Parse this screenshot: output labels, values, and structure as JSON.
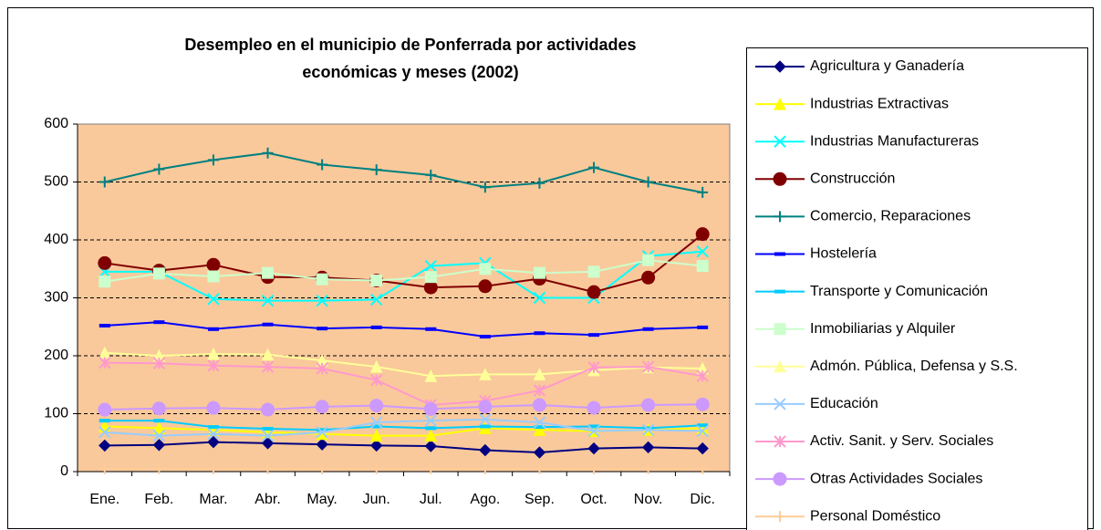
{
  "chart_data": {
    "type": "line",
    "title": [
      "Desempleo en el municipio de Ponferrada por actividades",
      "económicas y meses (2002)"
    ],
    "categories": [
      "Ene.",
      "Feb.",
      "Mar.",
      "Abr.",
      "May.",
      "Jun.",
      "Jul.",
      "Ago.",
      "Sep.",
      "Oct.",
      "Nov.",
      "Dic."
    ],
    "ylim": [
      0,
      600
    ],
    "yticks": [
      0,
      100,
      200,
      300,
      400,
      500,
      600
    ],
    "grid": true,
    "legend": "right",
    "plot_background": "#F9C99B",
    "series": [
      {
        "name": "Agricultura y Ganadería",
        "color": "#000080",
        "marker": "diamond",
        "values": [
          45,
          46,
          51,
          49,
          47,
          45,
          44,
          37,
          33,
          40,
          42,
          40
        ]
      },
      {
        "name": "Industrias Extractivas",
        "color": "#FFFF00",
        "marker": "triangle",
        "values": [
          78,
          75,
          72,
          68,
          65,
          62,
          62,
          75,
          72,
          70,
          72,
          75
        ]
      },
      {
        "name": "Industrias Manufactureras",
        "color": "#00FFFF",
        "marker": "x",
        "values": [
          345,
          345,
          298,
          295,
          295,
          297,
          355,
          360,
          300,
          300,
          372,
          380
        ]
      },
      {
        "name": "Construcción",
        "color": "#800000",
        "marker": "circle",
        "values": [
          360,
          347,
          357,
          336,
          335,
          330,
          318,
          320,
          333,
          310,
          335,
          410
        ]
      },
      {
        "name": "Comercio, Reparaciones",
        "color": "#008080",
        "marker": "plus",
        "values": [
          500,
          522,
          538,
          550,
          530,
          521,
          512,
          491,
          498,
          525,
          500,
          482
        ]
      },
      {
        "name": "Hostelería",
        "color": "#0000FF",
        "marker": "dash",
        "values": [
          252,
          258,
          246,
          254,
          247,
          249,
          246,
          233,
          239,
          236,
          246,
          249
        ]
      },
      {
        "name": "Transporte y Comunicación",
        "color": "#00CCFF",
        "marker": "dash",
        "values": [
          88,
          88,
          77,
          74,
          72,
          78,
          75,
          78,
          77,
          78,
          75,
          80
        ]
      },
      {
        "name": "Inmobiliarias y Alquiler",
        "color": "#CCFFCC",
        "marker": "square",
        "values": [
          328,
          342,
          337,
          343,
          332,
          330,
          336,
          350,
          343,
          345,
          365,
          355
        ]
      },
      {
        "name": "Admón. Pública, Defensa y S.S.",
        "color": "#FFFF99",
        "marker": "triangle",
        "values": [
          205,
          200,
          203,
          202,
          192,
          181,
          165,
          168,
          168,
          175,
          180,
          178
        ]
      },
      {
        "name": "Educación",
        "color": "#99CCFF",
        "marker": "x",
        "values": [
          68,
          62,
          65,
          62,
          68,
          85,
          88,
          90,
          85,
          70,
          72,
          70
        ]
      },
      {
        "name": "Activ. Sanit. y Serv. Sociales",
        "color": "#FF99CC",
        "marker": "star",
        "values": [
          188,
          187,
          183,
          181,
          178,
          158,
          115,
          122,
          140,
          180,
          181,
          165
        ]
      },
      {
        "name": "Otras Actividades Sociales",
        "color": "#CC99FF",
        "marker": "circle",
        "values": [
          107,
          109,
          110,
          107,
          112,
          114,
          108,
          112,
          115,
          110,
          115,
          116
        ]
      },
      {
        "name": "Personal Doméstico",
        "color": "#FFCC99",
        "marker": "plus",
        "values": [
          5,
          5,
          5,
          5,
          5,
          5,
          5,
          5,
          5,
          5,
          5,
          5
        ]
      }
    ]
  }
}
